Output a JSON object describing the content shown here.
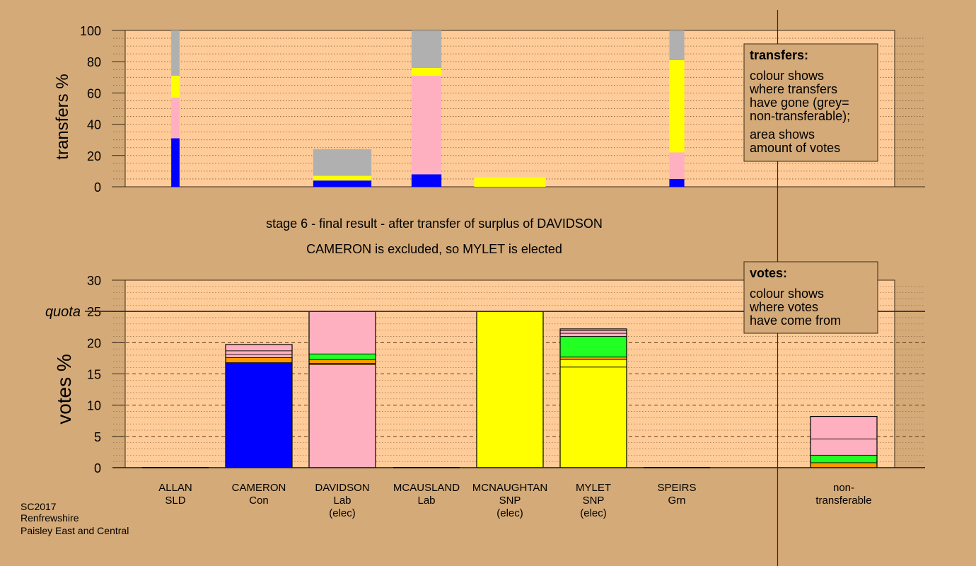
{
  "colors": {
    "background": "#d4aa78",
    "plot": "#ffcc99",
    "blue": "#0000ff",
    "pink": "#ffb0c0",
    "yellow": "#ffff00",
    "grey": "#b0b0b0",
    "orange": "#ff9900",
    "green": "#22ff22",
    "frame": "#3a2a1a"
  },
  "title_line1": "stage 6 - final result - after transfer of surplus of DAVIDSON",
  "title_line2": "CAMERON is excluded, so MYLET is elected",
  "footer": [
    "SC2017",
    "Renfrewshire",
    "Paisley East and Central"
  ],
  "transfers_box": {
    "heading": "transfers:",
    "para1": [
      "colour shows",
      "where transfers",
      "have gone (grey=",
      "non-transferable);"
    ],
    "para2": [
      "area shows",
      "amount of votes"
    ]
  },
  "votes_box": {
    "heading": "votes:",
    "para1": [
      "colour shows",
      "where votes",
      "have come from"
    ]
  },
  "candidates": [
    {
      "name": "ALLAN",
      "party": "SLD",
      "status": ""
    },
    {
      "name": "CAMERON",
      "party": "Con",
      "status": ""
    },
    {
      "name": "DAVIDSON",
      "party": "Lab",
      "status": "(elec)"
    },
    {
      "name": "MCAUSLAND",
      "party": "Lab",
      "status": ""
    },
    {
      "name": "MCNAUGHTAN",
      "party": "SNP",
      "status": "(elec)"
    },
    {
      "name": "MYLET",
      "party": "SNP",
      "status": "(elec)"
    },
    {
      "name": "SPEIRS",
      "party": "Grn",
      "status": ""
    },
    {
      "name": "non-",
      "party": "transferable",
      "status": ""
    }
  ],
  "chart_data": [
    {
      "type": "bar",
      "stacked": true,
      "ylabel": "transfers %",
      "ylim": [
        0,
        100
      ],
      "yticks": [
        0,
        20,
        40,
        60,
        80,
        100
      ],
      "grid": "dotted",
      "note": "bar width shows amount of votes",
      "bars": [
        {
          "position": 0,
          "width_share": 0.05,
          "segments": [
            {
              "color": "blue",
              "value": 31
            },
            {
              "color": "pink",
              "value": 26
            },
            {
              "color": "yellow",
              "value": 14
            },
            {
              "color": "grey",
              "value": 29
            }
          ]
        },
        {
          "position": 2,
          "width_share": 0.35,
          "segments": [
            {
              "color": "blue",
              "value": 4
            },
            {
              "color": "yellow",
              "value": 3
            },
            {
              "color": "grey",
              "value": 17
            }
          ]
        },
        {
          "position": 3,
          "width_share": 0.18,
          "segments": [
            {
              "color": "blue",
              "value": 8
            },
            {
              "color": "pink",
              "value": 63
            },
            {
              "color": "yellow",
              "value": 5
            },
            {
              "color": "grey",
              "value": 24
            }
          ]
        },
        {
          "position": 4,
          "width_share": 0.43,
          "segments": [
            {
              "color": "yellow",
              "value": 6
            }
          ]
        },
        {
          "position": 6,
          "width_share": 0.09,
          "segments": [
            {
              "color": "blue",
              "value": 5
            },
            {
              "color": "pink",
              "value": 17
            },
            {
              "color": "yellow",
              "value": 59
            },
            {
              "color": "grey",
              "value": 19
            }
          ]
        }
      ]
    },
    {
      "type": "bar",
      "stacked": true,
      "ylabel": "votes %",
      "ylim": [
        0,
        30
      ],
      "yticks": [
        0,
        5,
        10,
        15,
        20,
        25,
        30
      ],
      "quota": {
        "label": "quota",
        "value": 25
      },
      "grid": "dashed",
      "bars": [
        {
          "position": 0,
          "segments": []
        },
        {
          "position": 1,
          "segments": [
            {
              "color": "blue",
              "value": 16.8
            },
            {
              "color": "orange",
              "value": 0.8
            },
            {
              "color": "pink",
              "value": 0.5
            },
            {
              "color": "pink",
              "value": 0.6
            },
            {
              "color": "pink",
              "value": 1.0
            }
          ]
        },
        {
          "position": 2,
          "segments": [
            {
              "color": "pink",
              "value": 16.5
            },
            {
              "color": "orange",
              "value": 0.2
            },
            {
              "color": "orange",
              "value": 0.6
            },
            {
              "color": "green",
              "value": 0.9
            },
            {
              "color": "pink",
              "value": 6.8
            }
          ]
        },
        {
          "position": 3,
          "segments": []
        },
        {
          "position": 4,
          "segments": [
            {
              "color": "yellow",
              "value": 25.0
            }
          ]
        },
        {
          "position": 5,
          "segments": [
            {
              "color": "yellow",
              "value": 16.1
            },
            {
              "color": "yellow",
              "value": 1.2
            },
            {
              "color": "orange",
              "value": 0.4
            },
            {
              "color": "green",
              "value": 3.3
            },
            {
              "color": "pink",
              "value": 0.5
            },
            {
              "color": "pink",
              "value": 0.4
            },
            {
              "color": "pink",
              "value": 0.3
            }
          ]
        },
        {
          "position": 6,
          "segments": []
        },
        {
          "position": 7,
          "segments": [
            {
              "color": "orange",
              "value": 0.8
            },
            {
              "color": "green",
              "value": 1.2
            },
            {
              "color": "pink",
              "value": 2.6
            },
            {
              "color": "pink",
              "value": 3.6
            }
          ]
        }
      ]
    }
  ]
}
